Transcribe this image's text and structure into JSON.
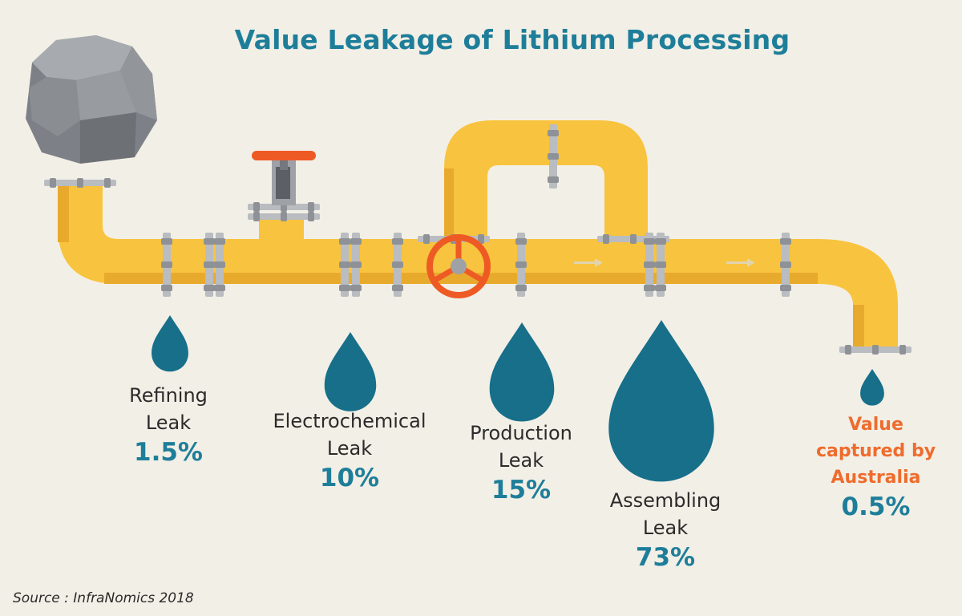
{
  "title": "Value Leakage of Lithium Processing",
  "leaks": [
    {
      "name": "Refining",
      "word": "Leak",
      "value": "1.5%"
    },
    {
      "name": "Electrochemical",
      "word": "Leak",
      "value": "10%"
    },
    {
      "name": "Production",
      "word": "Leak",
      "value": "15%"
    },
    {
      "name": "Assembling",
      "word": "Leak",
      "value": "73%"
    }
  ],
  "captured": {
    "line1": "Value",
    "line2": "captured by",
    "line3": "Australia",
    "value": "0.5%"
  },
  "source": "Source : InfraNomics 2018",
  "colors": {
    "background": "#f2efe6",
    "pipe": "#f8c33e",
    "pipe_shadow": "#e8aa2c",
    "flange": "#b9bcc0",
    "valve_handle": "#ee5a24",
    "drop": "#176f8a",
    "title": "#1e7e9a",
    "highlight": "#ee6c2d"
  },
  "icons": [
    "rock-icon",
    "gate-valve-icon",
    "handwheel-valve-icon",
    "drop-icon"
  ]
}
